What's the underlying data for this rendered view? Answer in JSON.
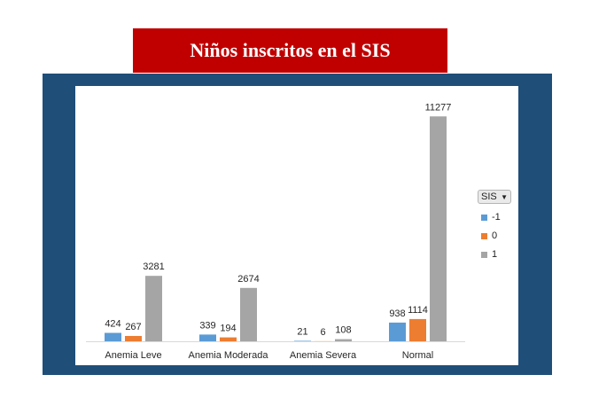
{
  "title": "Niños inscritos en el SIS",
  "colors": {
    "banner": "#c00000",
    "frame": "#1f4e79",
    "series": [
      "#5b9bd5",
      "#ed7d31",
      "#a5a5a5"
    ]
  },
  "legend": {
    "title": "SIS",
    "dropdown_icon": "chevron-down-icon",
    "placement": "right"
  },
  "chart_data": {
    "type": "bar",
    "categories": [
      "Anemia Leve",
      "Anemia Moderada",
      "Anemia Severa",
      "Normal"
    ],
    "series": [
      {
        "name": "-1",
        "values": [
          424,
          339,
          21,
          938
        ]
      },
      {
        "name": "0",
        "values": [
          267,
          194,
          6,
          1114
        ]
      },
      {
        "name": "1",
        "values": [
          3281,
          2674,
          108,
          11277
        ]
      }
    ],
    "ylim": [
      0,
      12800
    ],
    "grid": false,
    "data_labels": true
  }
}
